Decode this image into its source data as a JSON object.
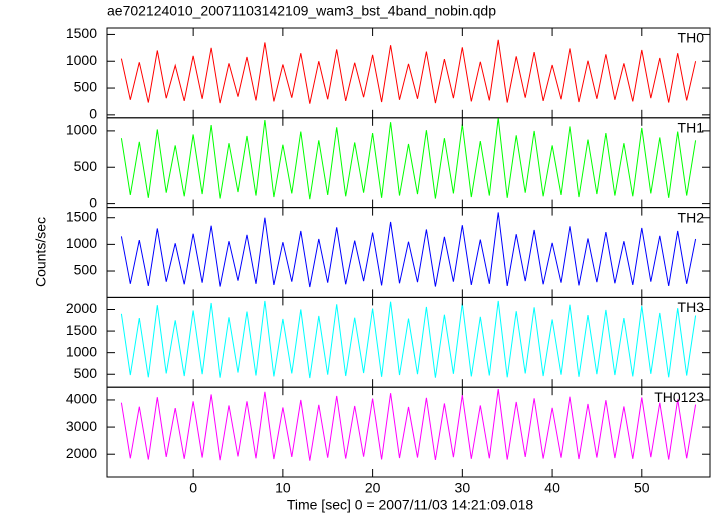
{
  "chart_data": {
    "type": "line",
    "title": "ae702124010_20071103142109_wam3_bst_4band_nobin.qdp",
    "xlabel": "Time [sec] 0 = 2007/11/03 14:21:09.018",
    "ylabel": "Counts/sec",
    "xlim": [
      -9.6,
      57.6
    ],
    "xticks": [
      0,
      10,
      20,
      30,
      40,
      50
    ],
    "x": [
      -8,
      -7,
      -6,
      -5,
      -4,
      -3,
      -2,
      -1,
      0,
      1,
      2,
      3,
      4,
      5,
      6,
      7,
      8,
      9,
      10,
      11,
      12,
      13,
      14,
      15,
      16,
      17,
      18,
      19,
      20,
      21,
      22,
      23,
      24,
      25,
      26,
      27,
      28,
      29,
      30,
      31,
      32,
      33,
      34,
      35,
      36,
      37,
      38,
      39,
      40,
      41,
      42,
      43,
      44,
      45,
      46,
      47,
      48,
      49,
      50,
      51,
      52,
      53,
      54,
      55,
      56
    ],
    "panels": [
      {
        "name": "TH0",
        "color": "#ff0000",
        "ylim": [
          -55,
          1620
        ],
        "yticks": [
          0,
          500,
          1000,
          1500
        ],
        "values": [
          1050,
          280,
          980,
          230,
          1200,
          310,
          920,
          260,
          1100,
          300,
          1250,
          220,
          960,
          340,
          1080,
          270,
          1350,
          250,
          940,
          320,
          1150,
          210,
          1000,
          290,
          1220,
          260,
          970,
          330,
          1120,
          240,
          1300,
          280,
          950,
          300,
          1180,
          220,
          1040,
          310,
          1260,
          250,
          990,
          270,
          1400,
          230,
          1090,
          320,
          1170,
          260,
          930,
          290,
          1240,
          240,
          1010,
          300,
          1130,
          280,
          960,
          250,
          1210,
          310,
          1060,
          230,
          1150,
          270,
          1000
        ]
      },
      {
        "name": "TH1",
        "color": "#00ff00",
        "ylim": [
          -55,
          1180
        ],
        "yticks": [
          0,
          500,
          1000
        ],
        "values": [
          900,
          120,
          850,
          80,
          1020,
          150,
          800,
          100,
          950,
          130,
          1080,
          70,
          830,
          160,
          930,
          110,
          1150,
          90,
          810,
          140,
          990,
          60,
          870,
          120,
          1050,
          100,
          840,
          150,
          970,
          80,
          1120,
          110,
          820,
          130,
          1010,
          70,
          900,
          140,
          1090,
          90,
          860,
          110,
          1180,
          80,
          940,
          150,
          1000,
          100,
          800,
          120,
          1060,
          90,
          880,
          130,
          970,
          110,
          830,
          100,
          1040,
          140,
          910,
          80,
          990,
          110,
          870
        ]
      },
      {
        "name": "TH2",
        "color": "#0000ff",
        "ylim": [
          5,
          1690
        ],
        "yticks": [
          500,
          1000,
          1500
        ],
        "values": [
          1150,
          260,
          1080,
          220,
          1300,
          300,
          1020,
          250,
          1200,
          280,
          1350,
          210,
          1060,
          320,
          1180,
          260,
          1500,
          240,
          1040,
          300,
          1250,
          200,
          1100,
          280,
          1320,
          250,
          1070,
          310,
          1220,
          230,
          1420,
          270,
          1050,
          290,
          1280,
          210,
          1140,
          300,
          1360,
          240,
          1090,
          260,
          1600,
          220,
          1190,
          310,
          1270,
          250,
          1030,
          280,
          1340,
          230,
          1110,
          290,
          1230,
          270,
          1060,
          240,
          1310,
          300,
          1160,
          220,
          1250,
          260,
          1100
        ]
      },
      {
        "name": "TH3",
        "color": "#00ffff",
        "ylim": [
          200,
          2280
        ],
        "yticks": [
          500,
          1000,
          1500,
          2000
        ],
        "values": [
          1900,
          480,
          1800,
          430,
          2100,
          520,
          1750,
          460,
          1980,
          500,
          2150,
          420,
          1820,
          540,
          1950,
          470,
          2200,
          450,
          1780,
          520,
          2000,
          410,
          1850,
          490,
          2120,
          460,
          1810,
          530,
          2020,
          440,
          2180,
          480,
          1790,
          500,
          2060,
          420,
          1880,
          510,
          2140,
          450,
          1830,
          470,
          2200,
          430,
          1960,
          520,
          2050,
          460,
          1770,
          490,
          2110,
          440,
          1870,
          500,
          1990,
          480,
          1800,
          450,
          2080,
          510,
          1920,
          430,
          2030,
          470,
          1860
        ]
      },
      {
        "name": "TH0123",
        "color": "#ff00ff",
        "ylim": [
          1160,
          4470
        ],
        "yticks": [
          2000,
          3000,
          4000
        ],
        "values": [
          3900,
          1850,
          3750,
          1800,
          4100,
          1900,
          3700,
          1830,
          3950,
          1880,
          4200,
          1780,
          3800,
          1920,
          3950,
          1850,
          4300,
          1820,
          3720,
          1900,
          4000,
          1760,
          3820,
          1870,
          4150,
          1840,
          3780,
          1910,
          4050,
          1810,
          4250,
          1860,
          3740,
          1880,
          4080,
          1790,
          3870,
          1890,
          4180,
          1830,
          3800,
          1850,
          4400,
          1800,
          3930,
          1900,
          4060,
          1840,
          3710,
          1870,
          4120,
          1820,
          3850,
          1880,
          3990,
          1860,
          3760,
          1830,
          4090,
          1890,
          3900,
          1800,
          4020,
          1850,
          3830
        ]
      }
    ]
  }
}
